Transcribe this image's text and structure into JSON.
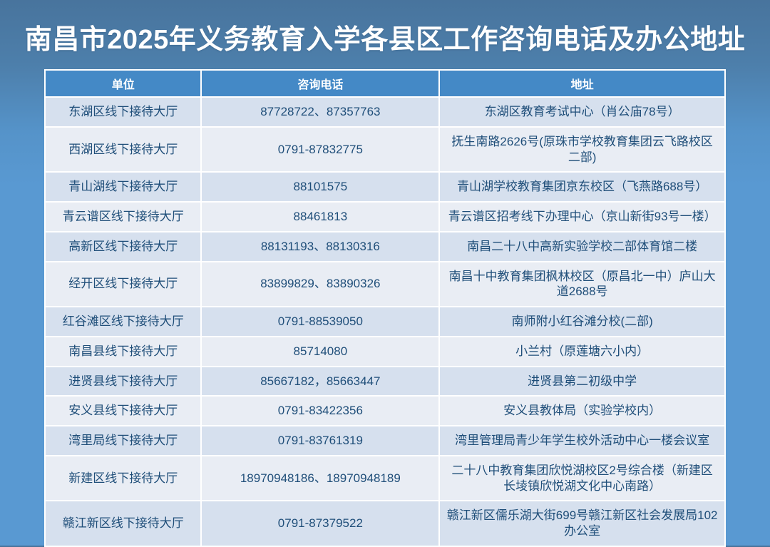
{
  "title": "南昌市2025年义务教育入学各县区工作咨询电话及办公地址",
  "table": {
    "headers": [
      "单位",
      "咨询电话",
      "地址"
    ],
    "rows": [
      [
        "东湖区线下接待大厅",
        "87728722、87357763",
        "东湖区教育考试中心（肖公庙78号）"
      ],
      [
        "西湖区线下接待大厅",
        "0791-87832775",
        "抚生南路2626号(原珠市学校教育集团云飞路校区二部)"
      ],
      [
        "青山湖线下接待大厅",
        "88101575",
        "青山湖学校教育集团京东校区（飞燕路688号）"
      ],
      [
        "青云谱区线下接待大厅",
        "88461813",
        "青云谱区招考线下办理中心（京山新街93号一楼）"
      ],
      [
        "高新区线下接待大厅",
        "88131193、88130316",
        "南昌二十八中高新实验学校二部体育馆二楼"
      ],
      [
        "经开区线下接待大厅",
        "83899829、83890326",
        "南昌十中教育集团枫林校区（原昌北一中）庐山大道2688号"
      ],
      [
        "红谷滩区线下接待大厅",
        "0791-88539050",
        "南师附小红谷滩分校(二部)"
      ],
      [
        "南昌县线下接待大厅",
        "85714080",
        "小兰村（原莲塘六小内）"
      ],
      [
        "进贤县线下接待大厅",
        "85667182，85663447",
        "进贤县第二初级中学"
      ],
      [
        "安义县线下接待大厅",
        "0791-83422356",
        "安义县教体局（实验学校内）"
      ],
      [
        "湾里局线下接待大厅",
        "0791-83761319",
        "湾里管理局青少年学生校外活动中心一楼会议室"
      ],
      [
        "新建区线下接待大厅",
        "18970948186、18970948189",
        "二十八中教育集团欣悦湖校区2号综合楼（新建区长堎镇欣悦湖文化中心南路）"
      ],
      [
        "赣江新区线下接待大厅",
        "0791-87379522",
        "赣江新区儒乐湖大街699号赣江新区社会发展局102办公室"
      ]
    ]
  },
  "colors": {
    "background_top": "#48749d",
    "background_main": "#5999d2",
    "header_bg": "#4489c6",
    "row_odd": "#d6e0ee",
    "row_even": "#e9edf4",
    "cell_text": "#1f4e79",
    "title_text": "#ffffff"
  }
}
